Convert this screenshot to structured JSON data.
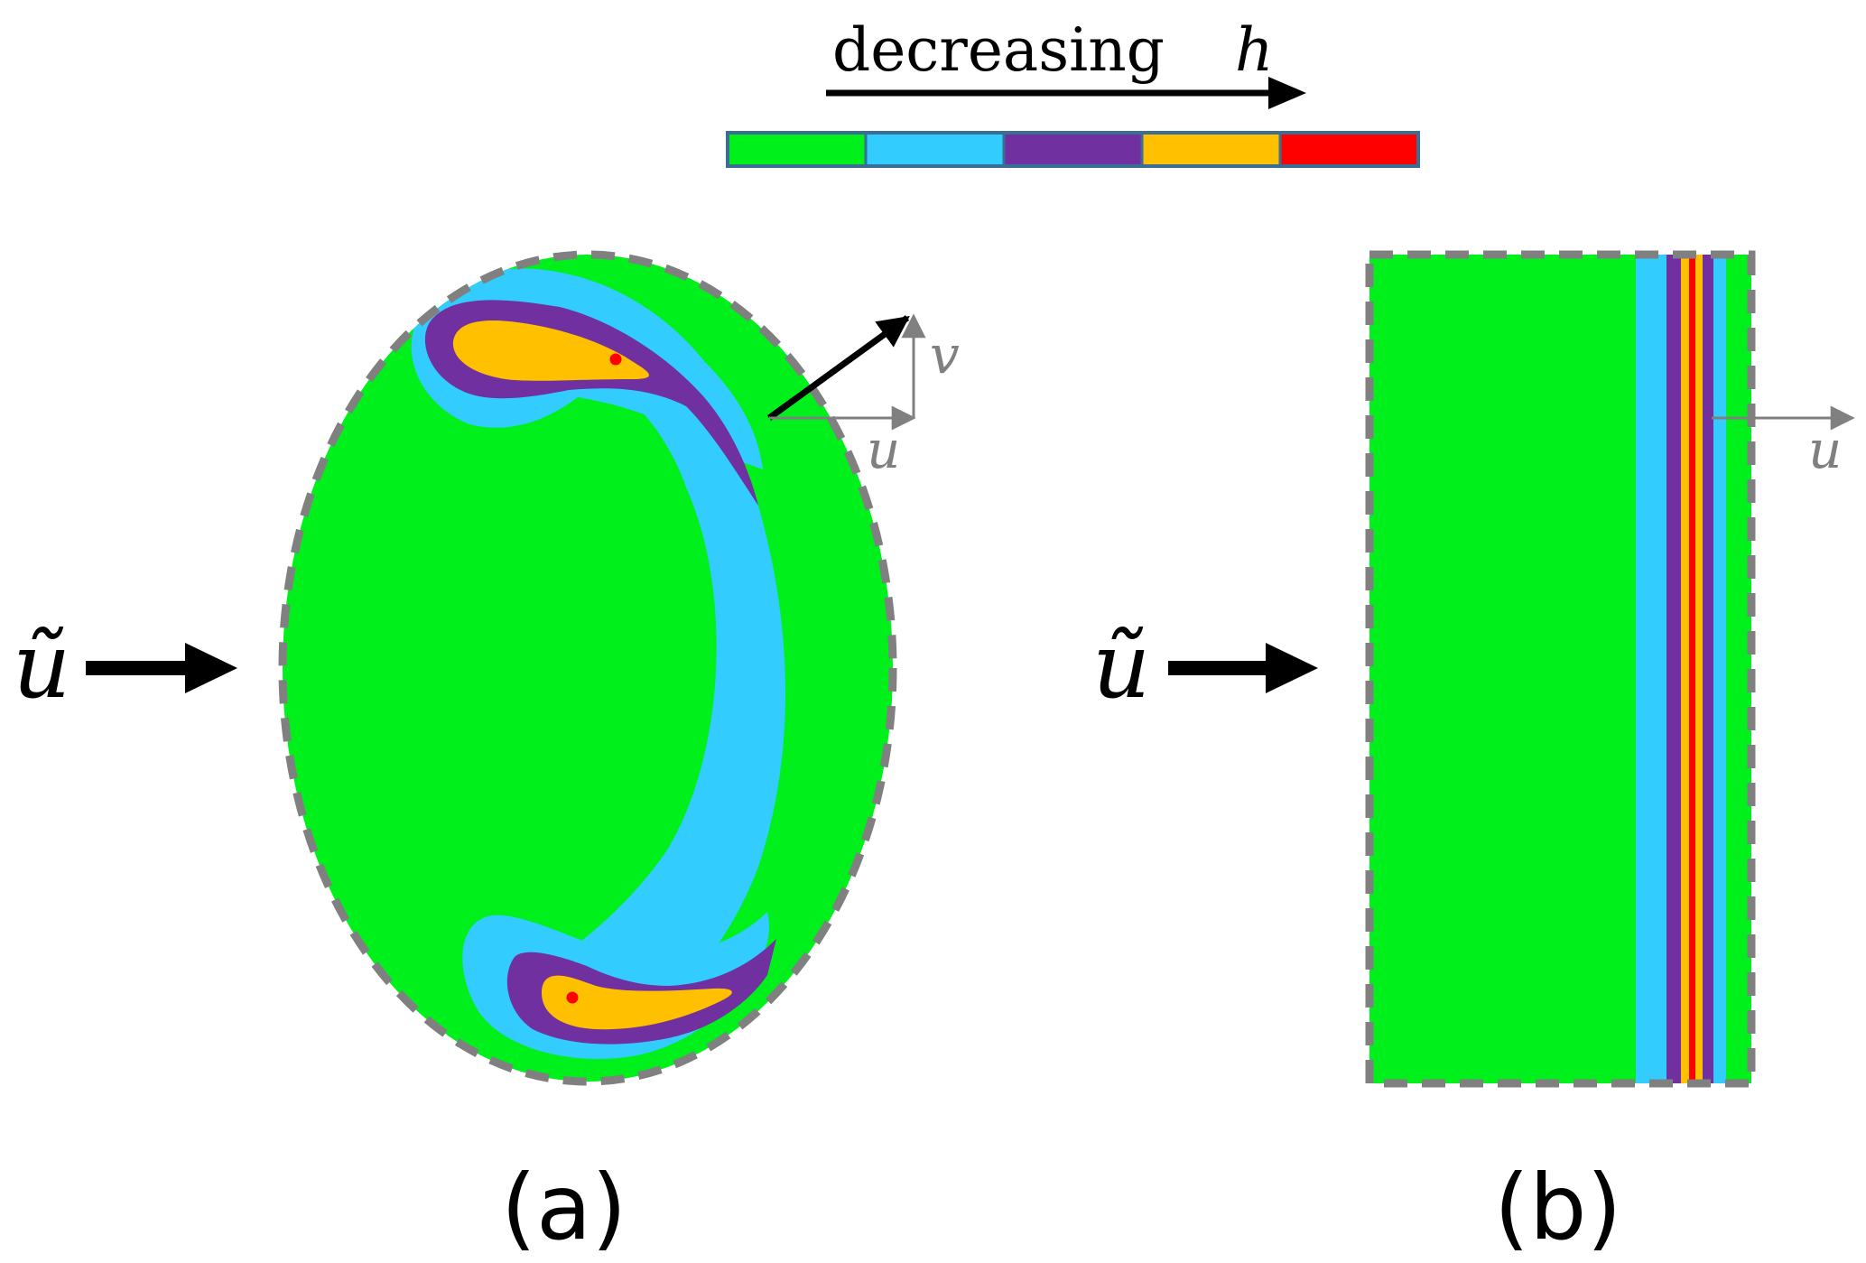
{
  "colorbar": {
    "label_word": "decreasing",
    "label_var": "h",
    "border_color": "#3a6e94",
    "levels": [
      "#00f01c",
      "#33ccff",
      "#7030a0",
      "#ffc000",
      "#ff0000"
    ]
  },
  "colors": {
    "outline": "#808080",
    "vector": "#808080",
    "arrow": "#000000",
    "source_dot": "#ff0000"
  },
  "panel_a": {
    "caption": "(a)",
    "incident_label": "ũ",
    "u_label": "u",
    "v_label": "v"
  },
  "panel_b": {
    "caption": "(b)",
    "incident_label": "ũ",
    "u_label": "u"
  }
}
